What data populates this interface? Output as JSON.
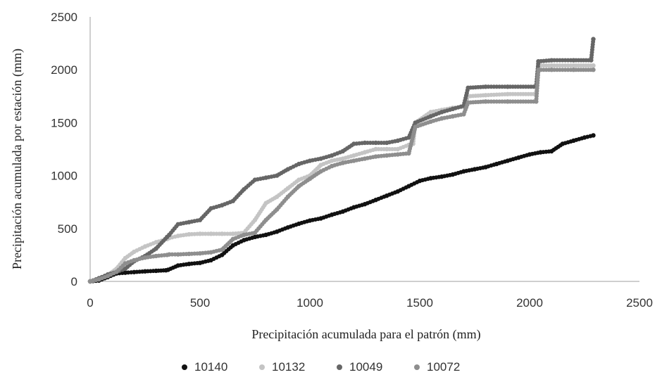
{
  "chart_data": {
    "type": "scatter",
    "title": "",
    "xlabel": "Precipitación acumulada para el patrón (mm)",
    "ylabel": "Precipitación acumulada por estación (mm)",
    "xlim": [
      0,
      2500
    ],
    "ylim": [
      0,
      2500
    ],
    "xticks": [
      "0",
      "500",
      "1000",
      "1500",
      "2000",
      "2500"
    ],
    "yticks": [
      "0",
      "500",
      "1000",
      "1500",
      "2000",
      "2500"
    ],
    "grid": false,
    "legend_position": "bottom",
    "series": [
      {
        "name": "10140",
        "color": "#111111",
        "points": [
          [
            0,
            0
          ],
          [
            40,
            8
          ],
          [
            80,
            40
          ],
          [
            120,
            75
          ],
          [
            160,
            82
          ],
          [
            200,
            88
          ],
          [
            250,
            95
          ],
          [
            300,
            100
          ],
          [
            345,
            105
          ],
          [
            355,
            110
          ],
          [
            400,
            150
          ],
          [
            450,
            165
          ],
          [
            500,
            175
          ],
          [
            550,
            200
          ],
          [
            600,
            250
          ],
          [
            650,
            340
          ],
          [
            700,
            390
          ],
          [
            750,
            420
          ],
          [
            800,
            440
          ],
          [
            850,
            470
          ],
          [
            900,
            510
          ],
          [
            950,
            545
          ],
          [
            1000,
            575
          ],
          [
            1050,
            595
          ],
          [
            1100,
            630
          ],
          [
            1150,
            660
          ],
          [
            1200,
            700
          ],
          [
            1250,
            730
          ],
          [
            1300,
            770
          ],
          [
            1350,
            810
          ],
          [
            1400,
            850
          ],
          [
            1450,
            900
          ],
          [
            1500,
            950
          ],
          [
            1550,
            975
          ],
          [
            1600,
            990
          ],
          [
            1650,
            1010
          ],
          [
            1700,
            1040
          ],
          [
            1750,
            1060
          ],
          [
            1800,
            1080
          ],
          [
            1850,
            1110
          ],
          [
            1900,
            1140
          ],
          [
            1950,
            1170
          ],
          [
            2000,
            1200
          ],
          [
            2050,
            1220
          ],
          [
            2100,
            1230
          ],
          [
            2150,
            1300
          ],
          [
            2200,
            1330
          ],
          [
            2250,
            1360
          ],
          [
            2290,
            1380
          ]
        ]
      },
      {
        "name": "10132",
        "color": "#c4c4c4",
        "points": [
          [
            0,
            0
          ],
          [
            40,
            20
          ],
          [
            80,
            60
          ],
          [
            120,
            120
          ],
          [
            160,
            220
          ],
          [
            200,
            280
          ],
          [
            250,
            330
          ],
          [
            300,
            370
          ],
          [
            350,
            400
          ],
          [
            360,
            410
          ],
          [
            400,
            430
          ],
          [
            450,
            445
          ],
          [
            500,
            450
          ],
          [
            550,
            450
          ],
          [
            600,
            450
          ],
          [
            650,
            450
          ],
          [
            700,
            460
          ],
          [
            750,
            580
          ],
          [
            800,
            740
          ],
          [
            850,
            800
          ],
          [
            900,
            880
          ],
          [
            950,
            960
          ],
          [
            1000,
            1000
          ],
          [
            1050,
            1100
          ],
          [
            1100,
            1140
          ],
          [
            1150,
            1160
          ],
          [
            1200,
            1190
          ],
          [
            1250,
            1220
          ],
          [
            1300,
            1250
          ],
          [
            1350,
            1250
          ],
          [
            1400,
            1250
          ],
          [
            1450,
            1290
          ],
          [
            1470,
            1300
          ],
          [
            1480,
            1500
          ],
          [
            1550,
            1600
          ],
          [
            1600,
            1620
          ],
          [
            1650,
            1640
          ],
          [
            1700,
            1650
          ],
          [
            1720,
            1750
          ],
          [
            1800,
            1760
          ],
          [
            1900,
            1770
          ],
          [
            2030,
            1770
          ],
          [
            2040,
            2040
          ],
          [
            2100,
            2040
          ],
          [
            2200,
            2040
          ],
          [
            2290,
            2040
          ]
        ]
      },
      {
        "name": "10049",
        "color": "#666666",
        "points": [
          [
            0,
            0
          ],
          [
            40,
            30
          ],
          [
            80,
            65
          ],
          [
            120,
            90
          ],
          [
            160,
            120
          ],
          [
            200,
            190
          ],
          [
            250,
            240
          ],
          [
            300,
            310
          ],
          [
            350,
            420
          ],
          [
            360,
            440
          ],
          [
            400,
            540
          ],
          [
            450,
            560
          ],
          [
            500,
            580
          ],
          [
            550,
            690
          ],
          [
            600,
            720
          ],
          [
            650,
            760
          ],
          [
            700,
            870
          ],
          [
            750,
            960
          ],
          [
            800,
            980
          ],
          [
            850,
            1000
          ],
          [
            900,
            1060
          ],
          [
            950,
            1110
          ],
          [
            1000,
            1140
          ],
          [
            1050,
            1160
          ],
          [
            1100,
            1190
          ],
          [
            1150,
            1230
          ],
          [
            1200,
            1300
          ],
          [
            1250,
            1310
          ],
          [
            1300,
            1310
          ],
          [
            1350,
            1310
          ],
          [
            1400,
            1330
          ],
          [
            1450,
            1360
          ],
          [
            1480,
            1500
          ],
          [
            1550,
            1560
          ],
          [
            1600,
            1600
          ],
          [
            1650,
            1630
          ],
          [
            1700,
            1660
          ],
          [
            1720,
            1830
          ],
          [
            1800,
            1840
          ],
          [
            1900,
            1840
          ],
          [
            2030,
            1840
          ],
          [
            2040,
            2080
          ],
          [
            2100,
            2090
          ],
          [
            2200,
            2090
          ],
          [
            2280,
            2090
          ],
          [
            2290,
            2290
          ]
        ]
      },
      {
        "name": "10072",
        "color": "#8e8e8e",
        "points": [
          [
            0,
            0
          ],
          [
            40,
            20
          ],
          [
            80,
            50
          ],
          [
            120,
            90
          ],
          [
            160,
            170
          ],
          [
            200,
            200
          ],
          [
            250,
            225
          ],
          [
            300,
            240
          ],
          [
            350,
            250
          ],
          [
            360,
            255
          ],
          [
            400,
            255
          ],
          [
            450,
            260
          ],
          [
            500,
            265
          ],
          [
            550,
            275
          ],
          [
            600,
            300
          ],
          [
            650,
            400
          ],
          [
            700,
            440
          ],
          [
            750,
            460
          ],
          [
            800,
            580
          ],
          [
            850,
            680
          ],
          [
            900,
            800
          ],
          [
            950,
            900
          ],
          [
            1000,
            970
          ],
          [
            1050,
            1040
          ],
          [
            1100,
            1090
          ],
          [
            1150,
            1120
          ],
          [
            1200,
            1140
          ],
          [
            1250,
            1160
          ],
          [
            1300,
            1180
          ],
          [
            1350,
            1190
          ],
          [
            1400,
            1200
          ],
          [
            1450,
            1210
          ],
          [
            1480,
            1460
          ],
          [
            1550,
            1510
          ],
          [
            1600,
            1540
          ],
          [
            1650,
            1560
          ],
          [
            1700,
            1580
          ],
          [
            1720,
            1690
          ],
          [
            1800,
            1700
          ],
          [
            1900,
            1700
          ],
          [
            2030,
            1700
          ],
          [
            2040,
            2000
          ],
          [
            2100,
            2000
          ],
          [
            2200,
            2000
          ],
          [
            2290,
            2000
          ]
        ]
      }
    ]
  }
}
